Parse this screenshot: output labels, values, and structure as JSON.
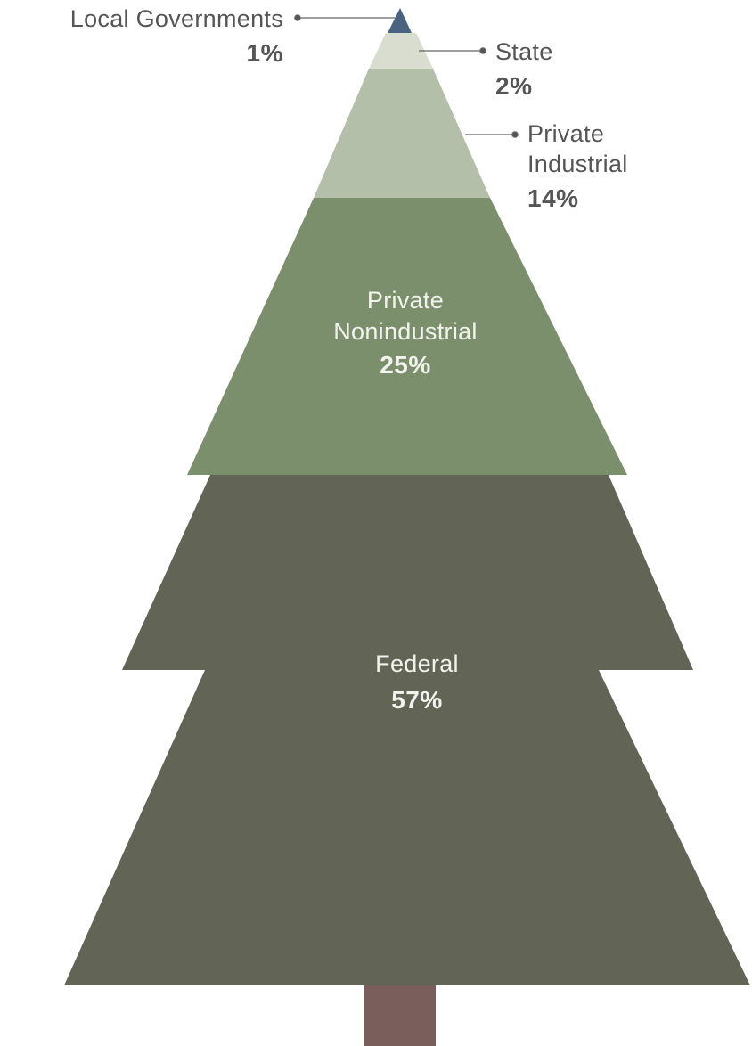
{
  "chart_data": {
    "type": "pyramid",
    "categories": [
      "Local Governments",
      "State",
      "Private Industrial",
      "Private Nonindustrial",
      "Federal"
    ],
    "values": [
      1,
      2,
      14,
      25,
      57
    ],
    "value_labels": [
      "1%",
      "2%",
      "14%",
      "25%",
      "57%"
    ],
    "label_lines": [
      [
        "Local Governments"
      ],
      [
        "State"
      ],
      [
        "Private",
        "Industrial"
      ],
      [
        "Private",
        "Nonindustrial"
      ],
      [
        "Federal"
      ]
    ],
    "colors": {
      "local_governments": "#4a6380",
      "state": "#d8ddd0",
      "private_industrial": "#b3bfa9",
      "private_nonindustrial": "#7b8f6d",
      "federal": "#626455",
      "trunk": "#7a5e5b"
    }
  }
}
